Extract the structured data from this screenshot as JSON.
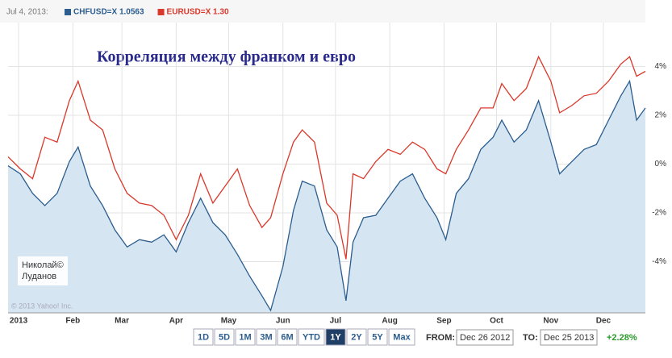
{
  "chart_data": {
    "type": "line",
    "title": "Корреляция между франком и евро",
    "header_date": "Jul 4, 2013:",
    "annotation": [
      "Николай©",
      "Луданов"
    ],
    "watermark": "© 2013 Yahoo! Inc.",
    "xlim": [
      0,
      364
    ],
    "xticks": [
      {
        "value": 6,
        "label": "2013"
      },
      {
        "value": 37,
        "label": "Feb"
      },
      {
        "value": 65,
        "label": "Mar"
      },
      {
        "value": 96,
        "label": "Apr"
      },
      {
        "value": 126,
        "label": "May"
      },
      {
        "value": 157,
        "label": "Jun"
      },
      {
        "value": 187,
        "label": "Jul"
      },
      {
        "value": 218,
        "label": "Aug"
      },
      {
        "value": 249,
        "label": "Sep"
      },
      {
        "value": 279,
        "label": "Oct"
      },
      {
        "value": 310,
        "label": "Nov"
      },
      {
        "value": 340,
        "label": "Dec"
      }
    ],
    "ylim": [
      -6.1,
      5.8
    ],
    "yticks": [
      {
        "value": -4,
        "label": "-4%"
      },
      {
        "value": -2,
        "label": "-2%"
      },
      {
        "value": 0,
        "label": "0%"
      },
      {
        "value": 2,
        "label": "2%"
      },
      {
        "value": 4,
        "label": "4%"
      }
    ],
    "grid": true,
    "x": [
      0,
      7,
      14,
      21,
      28,
      35,
      40,
      47,
      54,
      61,
      68,
      75,
      82,
      89,
      96,
      103,
      110,
      117,
      124,
      131,
      138,
      145,
      150,
      157,
      163,
      168,
      175,
      182,
      188,
      193,
      197,
      203,
      210,
      217,
      224,
      231,
      238,
      245,
      250,
      256,
      263,
      270,
      277,
      282,
      289,
      296,
      303,
      310,
      315,
      322,
      329,
      336,
      343,
      350,
      355,
      359,
      364
    ],
    "series": [
      {
        "name": "CHFUSD=X 1.0563",
        "color": "#2b5d8e",
        "fill": "#d5e5f1",
        "values": [
          -0.07,
          -0.4,
          -1.2,
          -1.7,
          -1.2,
          0.1,
          0.7,
          -0.9,
          -1.7,
          -2.7,
          -3.4,
          -3.1,
          -3.2,
          -2.9,
          -3.6,
          -2.4,
          -1.4,
          -2.4,
          -2.9,
          -3.7,
          -4.6,
          -5.4,
          -6.0,
          -4.2,
          -1.9,
          -0.7,
          -0.9,
          -2.7,
          -3.4,
          -5.6,
          -3.2,
          -2.2,
          -2.1,
          -1.4,
          -0.7,
          -0.4,
          -1.4,
          -2.2,
          -3.1,
          -1.2,
          -0.6,
          0.6,
          1.1,
          1.8,
          0.9,
          1.4,
          2.6,
          0.9,
          -0.4,
          0.1,
          0.6,
          0.8,
          1.8,
          2.8,
          3.4,
          1.8,
          2.3
        ]
      },
      {
        "name": "EURUSD=X 1.30",
        "color": "#d9382a",
        "values": [
          0.3,
          -0.2,
          -0.6,
          1.1,
          0.9,
          2.6,
          3.4,
          1.8,
          1.4,
          -0.2,
          -1.2,
          -1.6,
          -1.7,
          -2.1,
          -3.1,
          -2.1,
          -0.4,
          -1.6,
          -0.9,
          -0.2,
          -1.7,
          -2.6,
          -2.2,
          -0.4,
          0.9,
          1.4,
          0.9,
          -1.6,
          -2.1,
          -3.9,
          -0.4,
          -0.6,
          0.1,
          0.6,
          0.4,
          0.9,
          0.6,
          -0.2,
          -0.4,
          0.6,
          1.4,
          2.3,
          2.3,
          3.3,
          2.6,
          3.1,
          4.4,
          3.4,
          2.1,
          2.4,
          2.8,
          2.9,
          3.4,
          4.1,
          4.4,
          3.6,
          3.8
        ]
      }
    ],
    "range_buttons": [
      "1D",
      "5D",
      "1M",
      "3M",
      "6M",
      "YTD",
      "1Y",
      "2Y",
      "5Y",
      "Max"
    ],
    "active_range": "1Y",
    "from_label": "FROM:",
    "from": "Dec 26 2012",
    "to_label": "TO:",
    "to": "Dec 25 2013",
    "change": "+2.28%"
  }
}
